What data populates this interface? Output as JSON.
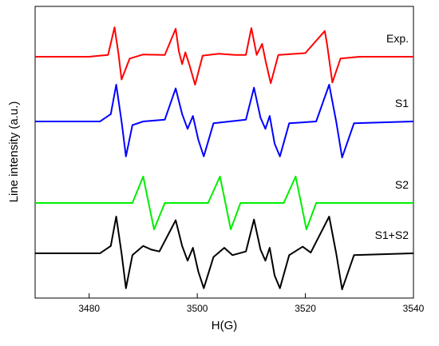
{
  "chart_data": {
    "type": "line",
    "title": "",
    "xlabel": "H(G)",
    "ylabel": "Line intensity (a.u.)",
    "xlim": [
      3470,
      3540
    ],
    "x_ticks": [
      "3480",
      "3500",
      "3520",
      "3540"
    ],
    "y_ticks": [],
    "grid": false,
    "legend": "none",
    "series": [
      {
        "name": "Exp.",
        "color": "#ff0000",
        "baseline": 4,
        "x": [
          3470,
          3480,
          3483.5,
          3484.7,
          3485.4,
          3486.0,
          3487.5,
          3490,
          3494,
          3496.0,
          3496.6,
          3497.2,
          3497.8,
          3498.6,
          3499.6,
          3501,
          3504,
          3507,
          3509,
          3510.0,
          3511.0,
          3512.0,
          3512.7,
          3513.6,
          3515,
          3520,
          3523.6,
          3524.0,
          3525.0,
          3526.5,
          3530,
          3540
        ],
        "y": [
          0,
          0,
          0.05,
          0.8,
          0.1,
          -0.62,
          -0.05,
          0.06,
          0.05,
          0.76,
          0.15,
          -0.2,
          0.12,
          -0.25,
          -0.76,
          0.03,
          0.08,
          0.05,
          0.05,
          0.78,
          0.05,
          0.35,
          -0.15,
          -0.72,
          0.05,
          0.1,
          0.7,
          0.35,
          -0.7,
          -0.05,
          0,
          0
        ]
      },
      {
        "name": "S1",
        "color": "#0000ff",
        "baseline": 3,
        "x": [
          3470,
          3482,
          3484,
          3485.0,
          3486.0,
          3486.8,
          3488,
          3490,
          3494,
          3496.0,
          3497.2,
          3498.2,
          3499.2,
          3500.2,
          3501.2,
          3503,
          3506,
          3509,
          3510.5,
          3511.7,
          3512.6,
          3513.4,
          3514.3,
          3515.3,
          3517,
          3522,
          3524.4,
          3525.7,
          3526.8,
          3529,
          3540
        ],
        "y": [
          0,
          0,
          0.2,
          1.0,
          0.0,
          -0.95,
          -0.1,
          0,
          0.05,
          0.9,
          0.2,
          -0.2,
          0.15,
          -0.5,
          -0.95,
          -0.05,
          0,
          0.05,
          0.92,
          0.1,
          -0.2,
          0.15,
          -0.6,
          -0.95,
          -0.05,
          0,
          1.0,
          0.0,
          -0.98,
          -0.05,
          0
        ]
      },
      {
        "name": "S2",
        "color": "#00ee00",
        "baseline": 2,
        "x": [
          3470,
          3488,
          3490.0,
          3491.0,
          3492.0,
          3494,
          3502,
          3504.2,
          3505.2,
          3506.2,
          3508,
          3516,
          3518.2,
          3519.2,
          3520.2,
          3522,
          3540
        ],
        "y": [
          0,
          0,
          0.72,
          0.0,
          -0.72,
          0,
          0,
          0.72,
          0.0,
          -0.72,
          0,
          0,
          0.72,
          0.0,
          -0.72,
          0,
          0
        ]
      },
      {
        "name": "S1+S2",
        "color": "#000000",
        "baseline": 1,
        "x": [
          3470,
          3482,
          3484,
          3485.0,
          3486.0,
          3486.8,
          3488,
          3490,
          3491.5,
          3493,
          3496.0,
          3497.2,
          3498.2,
          3499.2,
          3500.2,
          3501.2,
          3503,
          3505,
          3506.5,
          3509,
          3510.5,
          3511.7,
          3512.6,
          3513.4,
          3514.3,
          3515.3,
          3517,
          3519.5,
          3521,
          3524.4,
          3525.7,
          3526.8,
          3529,
          3540
        ],
        "y": [
          0,
          0,
          0.2,
          1.0,
          0.0,
          -0.95,
          -0.05,
          0.2,
          0.1,
          0.05,
          0.9,
          0.2,
          -0.2,
          0.15,
          -0.5,
          -0.95,
          -0.1,
          0.15,
          -0.05,
          0.05,
          0.92,
          0.1,
          -0.2,
          0.15,
          -0.6,
          -0.95,
          -0.05,
          0.18,
          0.02,
          1.0,
          0.0,
          -0.98,
          -0.05,
          0
        ]
      }
    ]
  }
}
